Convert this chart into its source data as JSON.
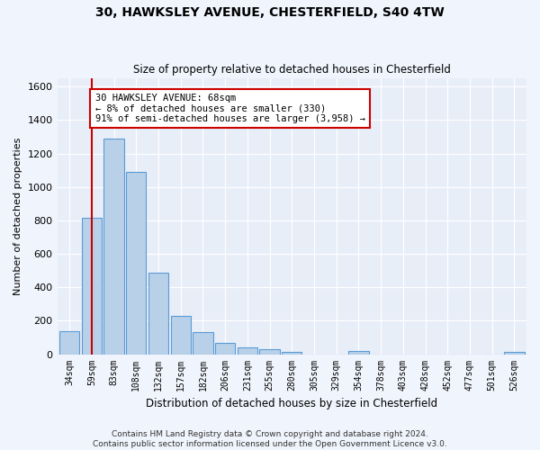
{
  "title1": "30, HAWKSLEY AVENUE, CHESTERFIELD, S40 4TW",
  "title2": "Size of property relative to detached houses in Chesterfield",
  "xlabel": "Distribution of detached houses by size in Chesterfield",
  "ylabel": "Number of detached properties",
  "bar_labels": [
    "34sqm",
    "59sqm",
    "83sqm",
    "108sqm",
    "132sqm",
    "157sqm",
    "182sqm",
    "206sqm",
    "231sqm",
    "255sqm",
    "280sqm",
    "305sqm",
    "329sqm",
    "354sqm",
    "378sqm",
    "403sqm",
    "428sqm",
    "452sqm",
    "477sqm",
    "501sqm",
    "526sqm"
  ],
  "bar_values": [
    135,
    815,
    1290,
    1090,
    490,
    230,
    130,
    65,
    38,
    28,
    14,
    0,
    0,
    18,
    0,
    0,
    0,
    0,
    0,
    0,
    14
  ],
  "bar_color": "#b8d0e8",
  "bar_edgecolor": "#5b9bd5",
  "vline_x": 1.0,
  "vline_color": "#cc0000",
  "annotation_text": "30 HAWKSLEY AVENUE: 68sqm\n← 8% of detached houses are smaller (330)\n91% of semi-detached houses are larger (3,958) →",
  "annotation_box_facecolor": "#ffffff",
  "annotation_box_edgecolor": "#cc0000",
  "ylim": [
    0,
    1650
  ],
  "yticks": [
    0,
    200,
    400,
    600,
    800,
    1000,
    1200,
    1400,
    1600
  ],
  "footer1": "Contains HM Land Registry data © Crown copyright and database right 2024.",
  "footer2": "Contains public sector information licensed under the Open Government Licence v3.0.",
  "bg_color": "#e8eef8",
  "fig_bg_color": "#f0f4fc",
  "grid_color": "#ffffff"
}
